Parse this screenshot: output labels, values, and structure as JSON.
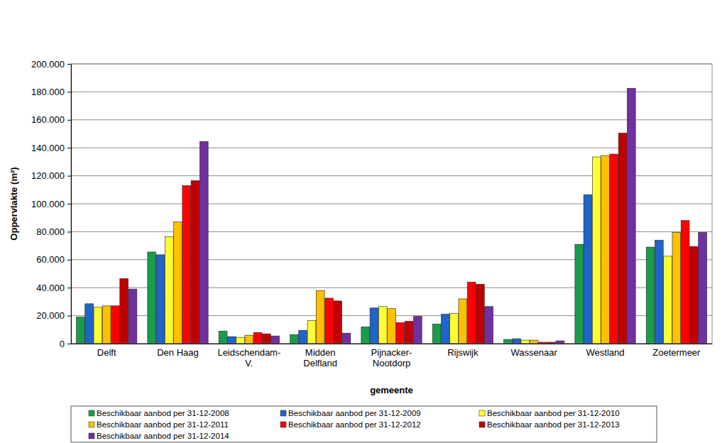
{
  "chart_data": {
    "type": "bar",
    "x_label": "gemeente",
    "y_label": "Oppervlakte (m²)",
    "categories": [
      "Delft",
      "Den Haag",
      "Leidschendam-\nV.",
      "Midden\nDelfland",
      "Pijnacker-\nNootdorp",
      "Rijswijk",
      "Wassenaar",
      "Westland",
      "Zoetermeer"
    ],
    "series": [
      {
        "name": "Beschikbaar aanbod per 31-12-2008",
        "color": "#1a9c4b",
        "values": [
          19000,
          65500,
          9000,
          6500,
          12000,
          14000,
          3000,
          71000,
          69000
        ]
      },
      {
        "name": "Beschikbaar aanbod per 31-12-2009",
        "color": "#1f64c8",
        "values": [
          28500,
          63500,
          5000,
          9500,
          25500,
          21000,
          3500,
          106500,
          74000
        ]
      },
      {
        "name": "Beschikbaar aanbod per 31-12-2010",
        "color": "#ffff33",
        "values": [
          26000,
          76500,
          4500,
          16500,
          26500,
          21500,
          2500,
          133500,
          62500
        ]
      },
      {
        "name": "Beschikbaar aanbod per 31-12-2011",
        "color": "#ffc000",
        "values": [
          27000,
          87000,
          6000,
          38000,
          25000,
          32000,
          2500,
          134500,
          79500
        ]
      },
      {
        "name": "Beschikbaar aanbod per 31-12-2012",
        "color": "#ff0000",
        "values": [
          27000,
          113000,
          8000,
          32500,
          15000,
          44000,
          1000,
          135500,
          88000
        ]
      },
      {
        "name": "Beschikbaar aanbod per 31-12-2013",
        "color": "#c00000",
        "values": [
          46500,
          116500,
          7000,
          30500,
          16000,
          42500,
          1000,
          150500,
          69500
        ]
      },
      {
        "name": "Beschikbaar aanbod per 31-12-2014",
        "color": "#7030a0",
        "values": [
          39000,
          144500,
          5500,
          7500,
          19500,
          26500,
          2000,
          182500,
          79500
        ]
      }
    ],
    "ylim": [
      0,
      200000
    ],
    "yticks": [
      0,
      {
        "value": 20000,
        "label": "20.000"
      },
      {
        "value": 40000,
        "label": "40.000"
      },
      {
        "value": 60000,
        "label": "60.000"
      },
      {
        "value": 80000,
        "label": "80.000"
      },
      {
        "value": 100000,
        "label": "100.000"
      },
      {
        "value": 120000,
        "label": "120.000"
      },
      {
        "value": 140000,
        "label": "140.000"
      },
      {
        "value": 160000,
        "label": "160.000"
      },
      {
        "value": 180000,
        "label": "180.000"
      },
      {
        "value": 200000,
        "label": "200.000"
      }
    ],
    "grid": true,
    "legend": "bottom"
  }
}
